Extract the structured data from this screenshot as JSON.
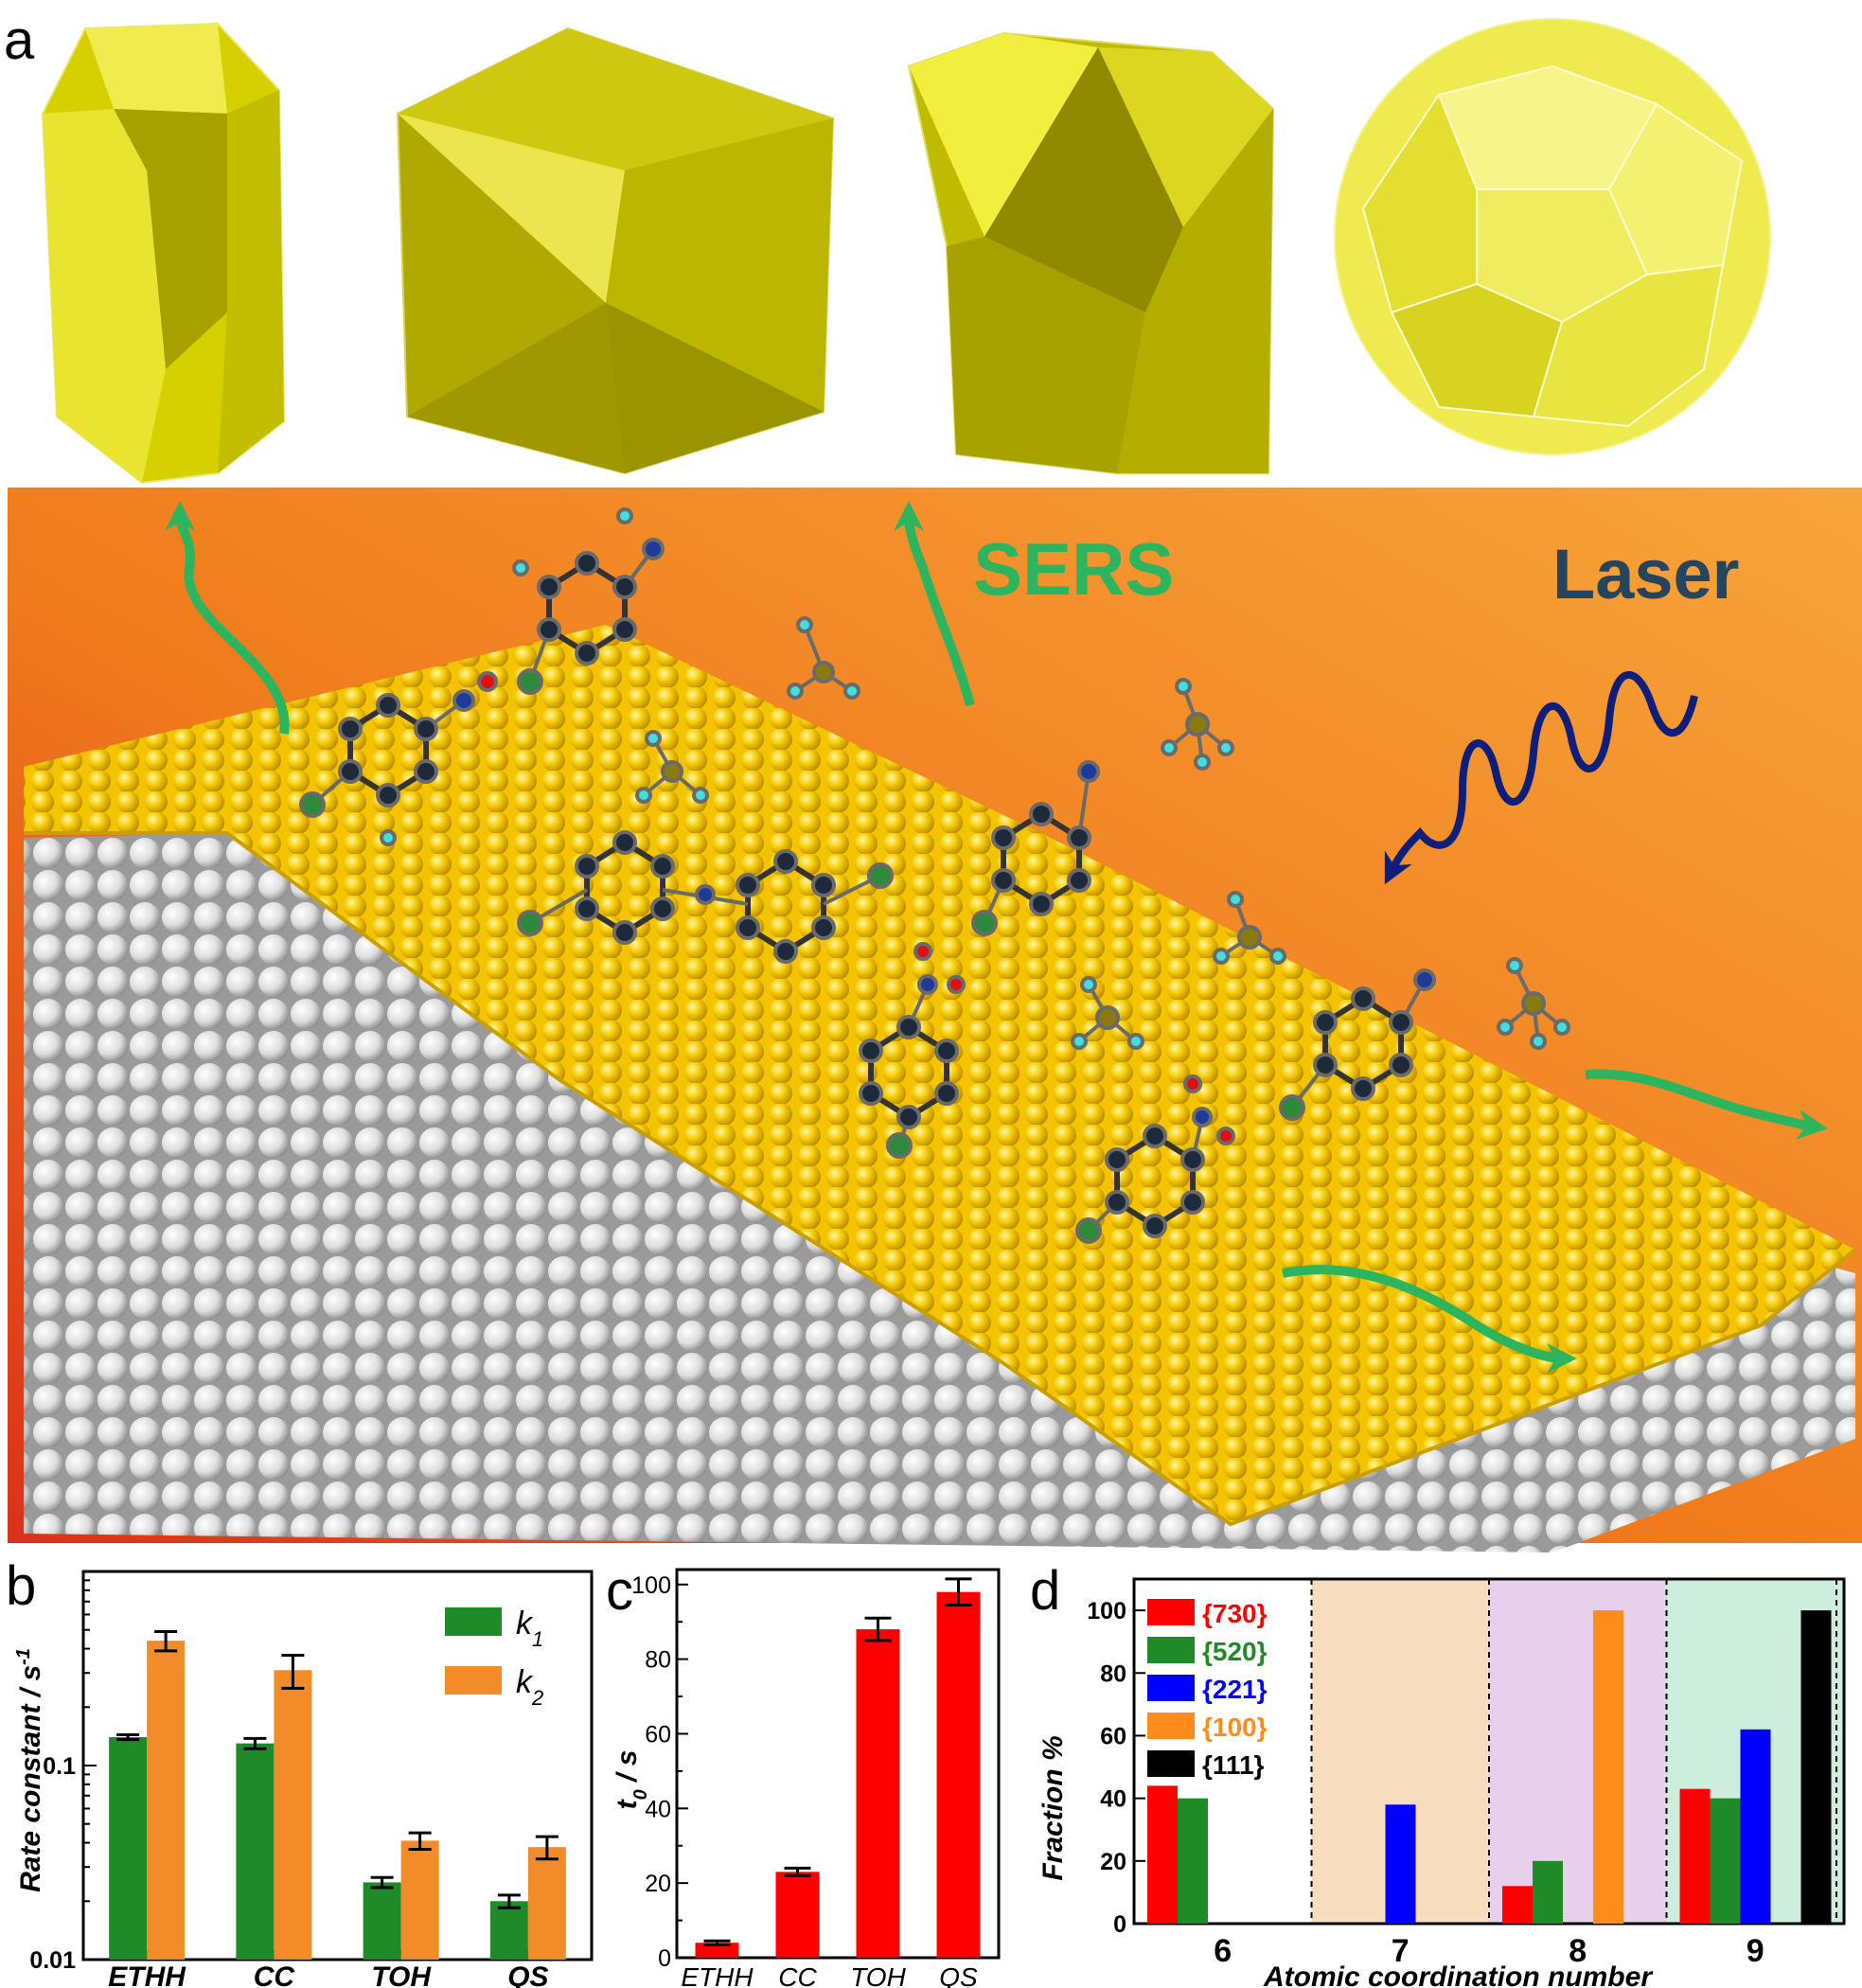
{
  "panel_labels": {
    "a": "a",
    "b": "b",
    "c": "c",
    "d": "d"
  },
  "illustration": {
    "annotations": {
      "sers": "SERS",
      "laser": "Laser"
    },
    "colors": {
      "background": "#f07a1c",
      "gold_atom": "#f2c400",
      "bulk_atom": "#e8e8e8",
      "arrow": "#2db45f",
      "laser_wave": "#0d1f7a",
      "polyhedron": "#c8c400"
    },
    "polyhedra_icons": [
      "elongated-hexoctahedron-icon",
      "concave-cube-icon",
      "trisoctahedron-icon",
      "quasi-sphere-icon"
    ]
  },
  "chart_data": [
    {
      "panel": "b",
      "type": "bar",
      "title": "",
      "xlabel": "",
      "ylabel": "Rate constant / s-1",
      "yscale": "log",
      "ylim": [
        0.01,
        1
      ],
      "yticks": [
        {
          "value": 0.01,
          "label": "0.01"
        },
        {
          "value": 0.1,
          "label": "0.1"
        }
      ],
      "categories": [
        "ETHH",
        "CC",
        "TOH",
        "QS"
      ],
      "series": [
        {
          "name": "k1",
          "color": "#1f8a28",
          "values": [
            0.14,
            0.13,
            0.025,
            0.02
          ],
          "errors": [
            0.004,
            0.008,
            0.0015,
            0.0015
          ]
        },
        {
          "name": "k2",
          "color": "#f28c28",
          "values": [
            0.44,
            0.31,
            0.041,
            0.038
          ],
          "errors": [
            0.05,
            0.06,
            0.004,
            0.005
          ]
        }
      ],
      "legend": {
        "placement": "top-right",
        "entries": [
          {
            "base": "k",
            "sub": "1"
          },
          {
            "base": "k",
            "sub": "2"
          }
        ]
      },
      "grid": false
    },
    {
      "panel": "c",
      "type": "bar",
      "title": "",
      "xlabel": "",
      "ylabel": "t0 / s",
      "ylim": [
        0,
        104
      ],
      "yticks": [
        {
          "value": 0,
          "label": "0"
        },
        {
          "value": 20,
          "label": "20"
        },
        {
          "value": 40,
          "label": "40"
        },
        {
          "value": 60,
          "label": "60"
        },
        {
          "value": 80,
          "label": "80"
        },
        {
          "value": 100,
          "label": "100"
        }
      ],
      "categories": [
        "ETHH",
        "CC",
        "TOH",
        "QS"
      ],
      "series": [
        {
          "color": "#ff0000",
          "values": [
            4,
            23,
            88,
            98
          ],
          "errors": [
            0.5,
            1,
            3,
            3.5
          ]
        }
      ],
      "grid": false
    },
    {
      "panel": "d",
      "type": "bar",
      "title": "",
      "xlabel": "Atomic coordination number",
      "ylabel": "Fraction %",
      "ylim": [
        0,
        110
      ],
      "yticks": [
        {
          "value": 0,
          "label": "0"
        },
        {
          "value": 20,
          "label": "20"
        },
        {
          "value": 40,
          "label": "40"
        },
        {
          "value": 60,
          "label": "60"
        },
        {
          "value": 80,
          "label": "80"
        },
        {
          "value": 100,
          "label": "100"
        }
      ],
      "categories": [
        "6",
        "7",
        "8",
        "9"
      ],
      "region_colors": [
        "#ffffff",
        "#f8dcc0",
        "#e8d0ec",
        "#cdeedd"
      ],
      "series": [
        {
          "name": "{730}",
          "color": "#ff0000",
          "values": [
            44,
            0,
            12,
            43
          ]
        },
        {
          "name": "{520}",
          "color": "#1f8a28",
          "values": [
            40,
            0,
            20,
            40
          ]
        },
        {
          "name": "{221}",
          "color": "#0000ff",
          "values": [
            0,
            38,
            0,
            62
          ]
        },
        {
          "name": "{100}",
          "color": "#ff8c1a",
          "values": [
            0,
            0,
            100,
            0
          ]
        },
        {
          "name": "{111}",
          "color": "#000000",
          "values": [
            0,
            0,
            0,
            100
          ]
        }
      ],
      "legend": {
        "placement": "top-left"
      },
      "grid": false
    }
  ]
}
